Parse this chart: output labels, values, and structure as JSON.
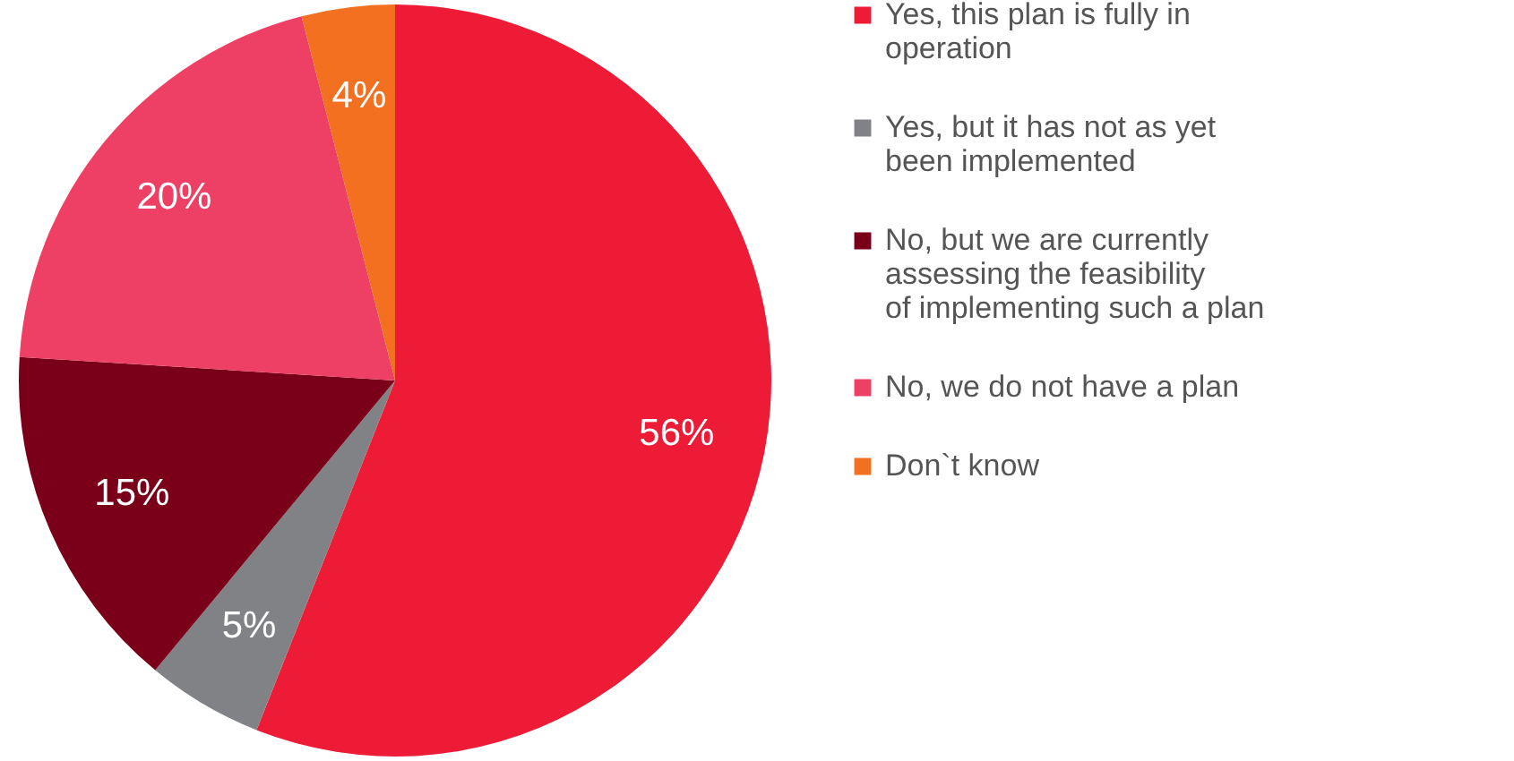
{
  "chart_data": {
    "type": "pie",
    "categories": [
      "Yes, this plan is fully in operation",
      "Yes, but it has not as yet been implemented",
      "No, but we are currently assessing the feasibility of implementing such a plan",
      "No, we do not have a plan",
      "Don`t know"
    ],
    "values": [
      56,
      5,
      15,
      20,
      4
    ],
    "colors": [
      "#ed1b36",
      "#808285",
      "#7a0019",
      "#ee3f64",
      "#f37021"
    ],
    "value_labels": [
      "56%",
      "5%",
      "15%",
      "20%",
      "4%"
    ],
    "legend": "right"
  }
}
